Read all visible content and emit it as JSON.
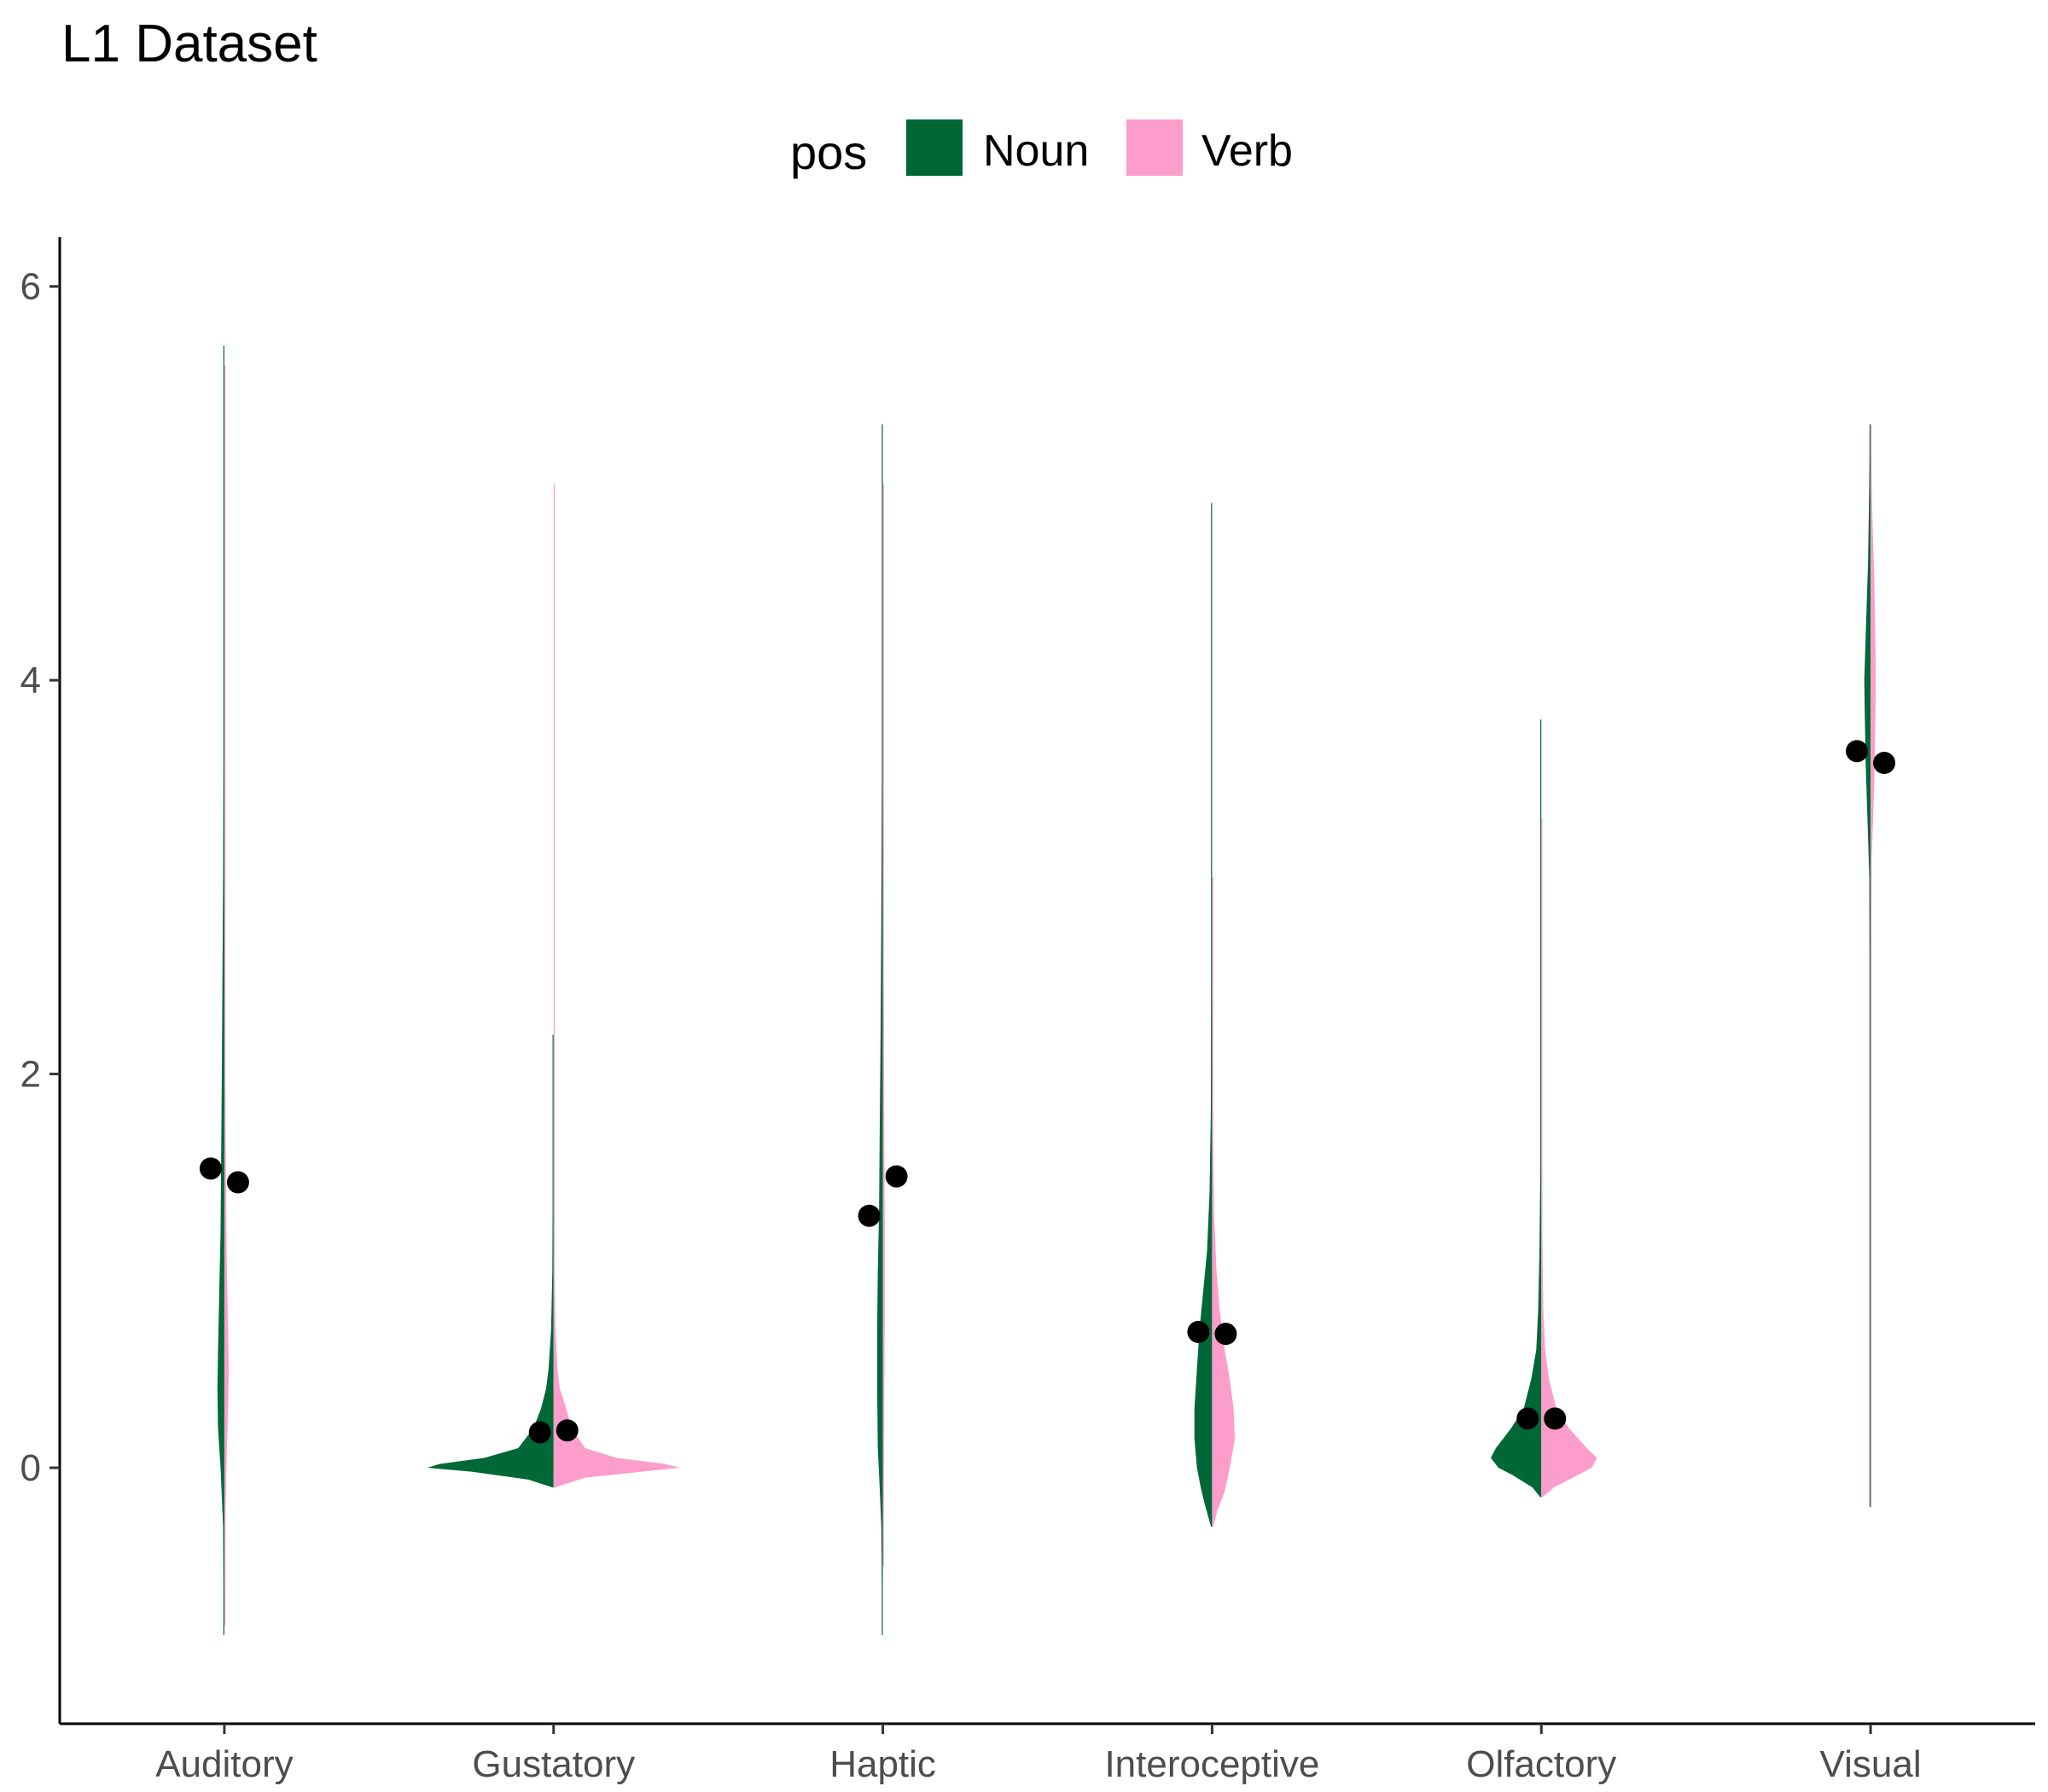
{
  "chart_data": {
    "type": "split-violin",
    "title": "L1 Dataset",
    "xlabel": "",
    "ylabel": "",
    "categories": [
      "Auditory",
      "Gustatory",
      "Haptic",
      "Interoceptive",
      "Olfactory",
      "Visual"
    ],
    "ylim": [
      -1.3,
      6.25
    ],
    "yticks": [
      0,
      2,
      4,
      6
    ],
    "grid": false,
    "legend": {
      "title": "pos",
      "position": "top"
    },
    "series": [
      {
        "name": "Noun",
        "color": "#006837",
        "means": [
          1.52,
          0.18,
          1.28,
          0.69,
          0.25,
          3.64
        ],
        "density": [
          [
            [
              -0.85,
              0
            ],
            [
              -0.6,
              0.005
            ],
            [
              -0.3,
              0.01
            ],
            [
              0,
              0.03
            ],
            [
              0.2,
              0.05
            ],
            [
              0.4,
              0.055
            ],
            [
              0.6,
              0.05
            ],
            [
              0.9,
              0.04
            ],
            [
              1.2,
              0.03
            ],
            [
              1.6,
              0.025
            ],
            [
              2.0,
              0.02
            ],
            [
              2.5,
              0.015
            ],
            [
              3.0,
              0.01
            ],
            [
              3.6,
              0.007
            ],
            [
              4.3,
              0.005
            ],
            [
              5.0,
              0.003
            ],
            [
              5.7,
              0
            ]
          ],
          [
            [
              -0.1,
              0
            ],
            [
              -0.06,
              0.2
            ],
            [
              -0.02,
              0.65
            ],
            [
              0.0,
              1.0
            ],
            [
              0.02,
              0.9
            ],
            [
              0.05,
              0.55
            ],
            [
              0.1,
              0.28
            ],
            [
              0.2,
              0.16
            ],
            [
              0.3,
              0.1
            ],
            [
              0.4,
              0.06
            ],
            [
              0.5,
              0.04
            ],
            [
              0.7,
              0.02
            ],
            [
              1.0,
              0.01
            ],
            [
              1.3,
              0.006
            ],
            [
              1.7,
              0.003
            ],
            [
              2.2,
              0
            ]
          ],
          [
            [
              -0.85,
              0
            ],
            [
              -0.6,
              0.005
            ],
            [
              -0.3,
              0.012
            ],
            [
              -0.1,
              0.025
            ],
            [
              0.1,
              0.04
            ],
            [
              0.4,
              0.045
            ],
            [
              0.7,
              0.045
            ],
            [
              1.0,
              0.04
            ],
            [
              1.3,
              0.03
            ],
            [
              1.7,
              0.025
            ],
            [
              2.2,
              0.018
            ],
            [
              2.8,
              0.012
            ],
            [
              3.5,
              0.008
            ],
            [
              4.2,
              0.005
            ],
            [
              4.8,
              0.003
            ],
            [
              5.3,
              0
            ]
          ],
          [
            [
              -0.3,
              0
            ],
            [
              -0.25,
              0.03
            ],
            [
              -0.18,
              0.06
            ],
            [
              -0.1,
              0.09
            ],
            [
              0.0,
              0.12
            ],
            [
              0.15,
              0.14
            ],
            [
              0.3,
              0.14
            ],
            [
              0.5,
              0.12
            ],
            [
              0.7,
              0.1
            ],
            [
              0.9,
              0.07
            ],
            [
              1.1,
              0.04
            ],
            [
              1.4,
              0.02
            ],
            [
              1.8,
              0.01
            ],
            [
              2.5,
              0.005
            ],
            [
              3.5,
              0.003
            ],
            [
              4.9,
              0
            ]
          ],
          [
            [
              -0.15,
              0
            ],
            [
              -0.1,
              0.07
            ],
            [
              -0.04,
              0.22
            ],
            [
              0.0,
              0.34
            ],
            [
              0.05,
              0.4
            ],
            [
              0.1,
              0.36
            ],
            [
              0.2,
              0.24
            ],
            [
              0.3,
              0.14
            ],
            [
              0.45,
              0.08
            ],
            [
              0.6,
              0.04
            ],
            [
              0.8,
              0.025
            ],
            [
              1.1,
              0.015
            ],
            [
              1.5,
              0.008
            ],
            [
              2.1,
              0.004
            ],
            [
              3.0,
              0.002
            ],
            [
              3.8,
              0
            ]
          ],
          [
            [
              -0.2,
              0
            ],
            [
              0.5,
              0.002
            ],
            [
              1.5,
              0.003
            ],
            [
              2.5,
              0.005
            ],
            [
              3.0,
              0.01
            ],
            [
              3.2,
              0.02
            ],
            [
              3.4,
              0.03
            ],
            [
              3.6,
              0.04
            ],
            [
              3.8,
              0.045
            ],
            [
              4.0,
              0.05
            ],
            [
              4.2,
              0.04
            ],
            [
              4.4,
              0.03
            ],
            [
              4.6,
              0.02
            ],
            [
              4.8,
              0.015
            ],
            [
              5.0,
              0.01
            ],
            [
              5.15,
              0.005
            ],
            [
              5.3,
              0
            ]
          ]
        ]
      },
      {
        "name": "Verb",
        "color": "#fc9dcb",
        "means": [
          1.45,
          0.19,
          1.48,
          0.68,
          0.25,
          3.58
        ],
        "density": [
          [
            [
              -0.8,
              0
            ],
            [
              -0.5,
              0.005
            ],
            [
              -0.2,
              0.01
            ],
            [
              0.1,
              0.02
            ],
            [
              0.3,
              0.03
            ],
            [
              0.5,
              0.035
            ],
            [
              0.7,
              0.03
            ],
            [
              1.0,
              0.02
            ],
            [
              1.3,
              0.015
            ],
            [
              1.7,
              0.01
            ],
            [
              2.0,
              0.008
            ],
            [
              2.5,
              0.005
            ],
            [
              3.0,
              0.004
            ],
            [
              4.0,
              0.003
            ],
            [
              5.0,
              0.002
            ],
            [
              5.6,
              0
            ]
          ],
          [
            [
              -0.1,
              0
            ],
            [
              -0.05,
              0.25
            ],
            [
              -0.02,
              0.7
            ],
            [
              0.0,
              1.0
            ],
            [
              0.02,
              0.88
            ],
            [
              0.05,
              0.5
            ],
            [
              0.1,
              0.25
            ],
            [
              0.2,
              0.14
            ],
            [
              0.3,
              0.1
            ],
            [
              0.4,
              0.05
            ],
            [
              0.5,
              0.03
            ],
            [
              0.7,
              0.015
            ],
            [
              1.0,
              0.008
            ],
            [
              1.4,
              0.004
            ],
            [
              1.8,
              0.002
            ],
            [
              4.2,
              0.001
            ],
            [
              4.7,
              0.003
            ],
            [
              5.0,
              0
            ]
          ],
          [
            [
              -0.5,
              0
            ],
            [
              -0.2,
              0.005
            ],
            [
              0.1,
              0.01
            ],
            [
              0.4,
              0.012
            ],
            [
              0.8,
              0.015
            ],
            [
              1.2,
              0.015
            ],
            [
              1.6,
              0.012
            ],
            [
              2.0,
              0.01
            ],
            [
              2.5,
              0.008
            ],
            [
              3.0,
              0.006
            ],
            [
              3.5,
              0.005
            ],
            [
              4.0,
              0.004
            ],
            [
              4.5,
              0.003
            ],
            [
              5.0,
              0
            ]
          ],
          [
            [
              -0.3,
              0
            ],
            [
              -0.22,
              0.04
            ],
            [
              -0.12,
              0.1
            ],
            [
              0.0,
              0.14
            ],
            [
              0.15,
              0.18
            ],
            [
              0.3,
              0.17
            ],
            [
              0.45,
              0.14
            ],
            [
              0.6,
              0.1
            ],
            [
              0.8,
              0.06
            ],
            [
              1.0,
              0.035
            ],
            [
              1.3,
              0.015
            ],
            [
              1.7,
              0.007
            ],
            [
              2.3,
              0.003
            ],
            [
              3.0,
              0
            ]
          ],
          [
            [
              -0.15,
              0
            ],
            [
              -0.1,
              0.1
            ],
            [
              -0.05,
              0.25
            ],
            [
              0.0,
              0.4
            ],
            [
              0.05,
              0.44
            ],
            [
              0.1,
              0.36
            ],
            [
              0.2,
              0.22
            ],
            [
              0.3,
              0.12
            ],
            [
              0.45,
              0.06
            ],
            [
              0.6,
              0.03
            ],
            [
              0.8,
              0.015
            ],
            [
              1.2,
              0.006
            ],
            [
              1.8,
              0.003
            ],
            [
              2.6,
              0.001
            ],
            [
              3.3,
              0
            ]
          ],
          [
            [
              -0.2,
              0
            ],
            [
              0.8,
              0.002
            ],
            [
              2.0,
              0.003
            ],
            [
              2.8,
              0.005
            ],
            [
              3.1,
              0.01
            ],
            [
              3.3,
              0.02
            ],
            [
              3.5,
              0.03
            ],
            [
              3.7,
              0.035
            ],
            [
              3.9,
              0.04
            ],
            [
              4.1,
              0.04
            ],
            [
              4.3,
              0.035
            ],
            [
              4.5,
              0.03
            ],
            [
              4.7,
              0.02
            ],
            [
              4.9,
              0.012
            ],
            [
              5.1,
              0.006
            ],
            [
              5.3,
              0
            ]
          ]
        ]
      }
    ]
  }
}
